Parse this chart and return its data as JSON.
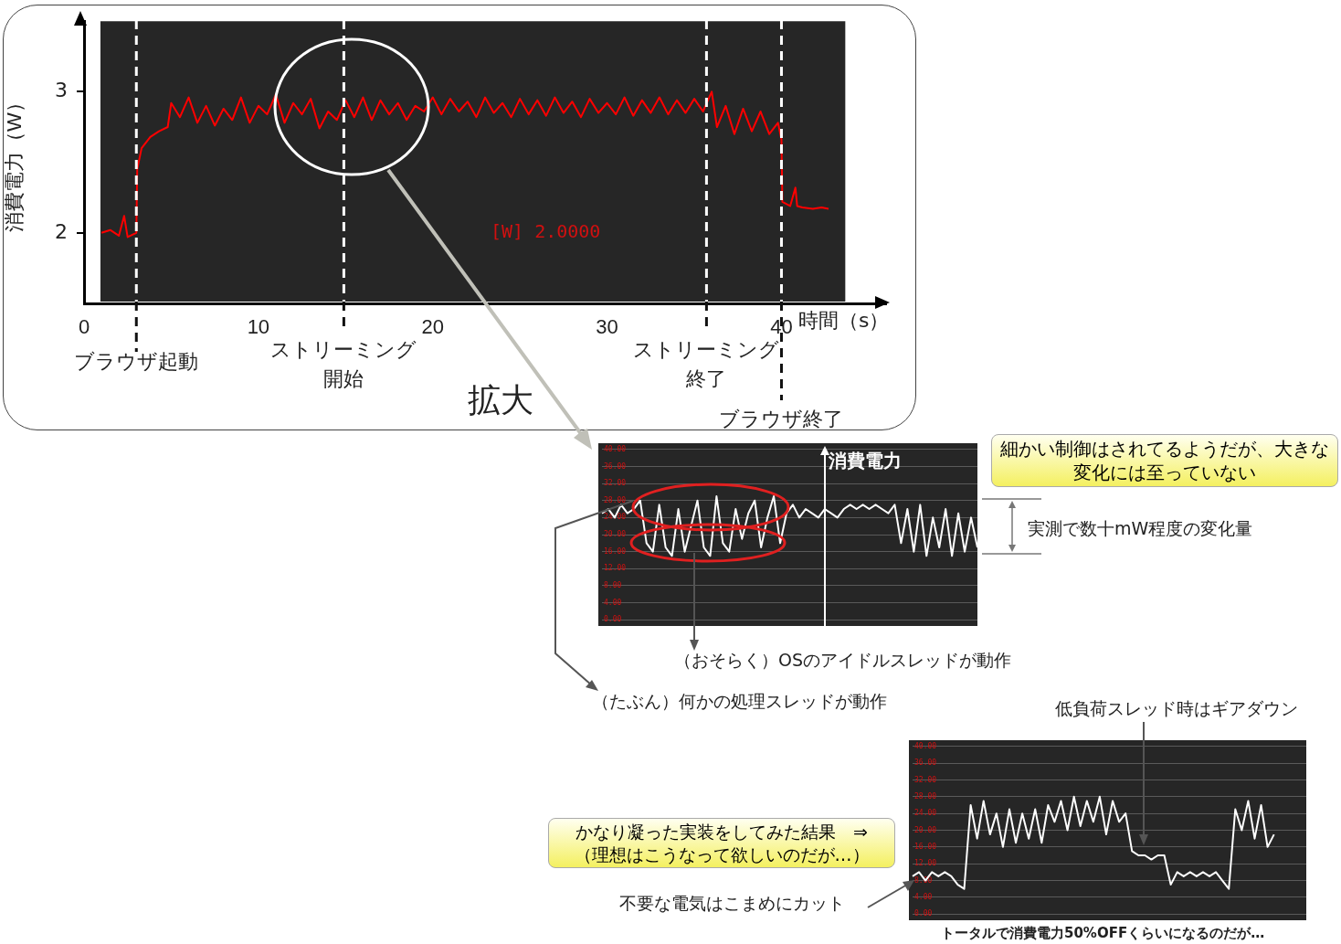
{
  "chart_data": [
    {
      "type": "line",
      "ylabel": "消費電力（W）",
      "xlabel": "時間（s）",
      "x": [
        1,
        1.5,
        2,
        2.3,
        2.5,
        3,
        3.05,
        3.3,
        3.8,
        4.3,
        4.8,
        5,
        5.5,
        6,
        6.5,
        7,
        7.5,
        8,
        8.5,
        9,
        9.5,
        10,
        10.5,
        11,
        11.5,
        12,
        12.5,
        13,
        13.5,
        14,
        14.5,
        15,
        15.5,
        16,
        16.5,
        17,
        17.5,
        18,
        18.5,
        19,
        19.5,
        20,
        20.5,
        21,
        21.5,
        22,
        22.5,
        23,
        23.5,
        24,
        24.5,
        25,
        25.5,
        26,
        26.5,
        27,
        27.5,
        28,
        28.5,
        29,
        29.5,
        30,
        30.5,
        31,
        31.5,
        32,
        32.5,
        33,
        33.5,
        34,
        34.5,
        35,
        35.5,
        36,
        36.3,
        36.8,
        37.3,
        37.8,
        38.3,
        38.8,
        39.3,
        39.8,
        40,
        40.05,
        40.5,
        40.8,
        40.9,
        41.2,
        41.8,
        42.3,
        42.7
      ],
      "series": [
        {
          "color": "#ff0000",
          "values": [
            2.0,
            2.02,
            1.98,
            2.12,
            1.97,
            2.0,
            2.45,
            2.6,
            2.68,
            2.72,
            2.75,
            2.92,
            2.82,
            2.96,
            2.78,
            2.9,
            2.76,
            2.88,
            2.8,
            2.96,
            2.78,
            2.9,
            2.84,
            2.98,
            2.78,
            2.92,
            2.84,
            2.95,
            2.74,
            2.86,
            2.8,
            2.94,
            2.82,
            2.96,
            2.8,
            2.94,
            2.84,
            2.92,
            2.8,
            2.9,
            2.86,
            2.96,
            2.84,
            2.95,
            2.86,
            2.93,
            2.82,
            2.96,
            2.85,
            2.92,
            2.82,
            2.95,
            2.84,
            2.94,
            2.83,
            2.96,
            2.85,
            2.93,
            2.82,
            2.95,
            2.85,
            2.92,
            2.84,
            2.96,
            2.83,
            2.94,
            2.85,
            2.96,
            2.84,
            2.94,
            2.85,
            2.95,
            2.86,
            3.0,
            2.75,
            2.9,
            2.7,
            2.88,
            2.72,
            2.86,
            2.7,
            2.78,
            2.66,
            2.22,
            2.19,
            2.32,
            2.19,
            2.18,
            2.17,
            2.18,
            2.17
          ]
        }
      ],
      "xlim": [
        0,
        46
      ],
      "xticks": [
        0,
        10,
        20,
        30,
        40
      ],
      "ylim": [
        1.5,
        3.5
      ],
      "yticks": [
        2,
        3
      ],
      "ref_lines": [
        {
          "axis": "x",
          "value": 3,
          "label": "ブラウザ起動",
          "line_style": "dashed"
        },
        {
          "axis": "x",
          "value": 14.9,
          "label": "ストリーミング開始",
          "line_style": "dashed"
        },
        {
          "axis": "x",
          "value": 35.7,
          "label": "ストリーミング終了",
          "line_style": "dashed"
        },
        {
          "axis": "x",
          "value": 40,
          "label": "ブラウザ終了",
          "line_style": "dashed"
        }
      ],
      "bands": [
        {
          "axis": "x",
          "from": 0.94,
          "to": 43.66,
          "color": "#262626"
        }
      ],
      "annotations": [
        "拡大",
        "[W] 2.0000"
      ],
      "grid": false,
      "legend": false
    },
    {
      "type": "line",
      "categories": [
        null,
        null,
        null,
        null,
        null,
        null,
        null,
        null,
        null,
        null,
        null,
        null,
        null,
        null,
        null,
        null,
        null,
        null,
        null,
        null,
        null,
        null,
        null,
        null,
        null,
        null,
        null,
        null,
        null,
        null,
        null,
        null,
        null,
        null,
        null,
        null,
        null,
        null,
        null,
        null,
        null,
        null,
        null,
        null,
        null,
        null,
        null,
        null,
        null,
        null,
        null,
        null,
        null,
        null,
        null,
        null,
        null,
        null,
        null,
        null
      ],
      "series": [
        {
          "color": "#ffffff",
          "values": [
            25,
            26,
            24,
            27,
            25,
            26,
            28,
            18,
            16,
            27,
            17,
            15,
            26,
            16,
            22,
            28,
            17,
            15,
            29,
            18,
            16,
            26,
            19,
            25,
            28,
            17,
            24,
            29,
            18,
            25,
            27,
            24,
            26,
            25,
            24,
            26,
            25,
            24,
            26,
            27,
            26,
            27,
            26,
            27,
            26,
            25,
            27,
            18,
            26,
            16,
            27,
            15,
            24,
            17,
            26,
            15,
            25,
            16,
            24,
            17
          ]
        }
      ],
      "ylim": [
        0,
        40
      ],
      "yticks": [
        {
          "value": 0,
          "label": "0.00"
        },
        {
          "value": 4,
          "label": "4.00"
        },
        {
          "value": 8,
          "label": "8.00"
        },
        {
          "value": 12,
          "label": "12.00"
        },
        {
          "value": 16,
          "label": "16.00"
        },
        {
          "value": 20,
          "label": "20.00"
        },
        {
          "value": 24,
          "label": "24.00"
        },
        {
          "value": 28,
          "label": "28.00"
        },
        {
          "value": 32,
          "label": "32.00"
        },
        {
          "value": 36,
          "label": "36.00"
        },
        {
          "value": 40,
          "label": "40.00"
        }
      ],
      "tick_labels": "y",
      "grid": "y",
      "legend": false,
      "annotations": [
        "消費電力",
        "細かい制御はされてるようだが、大きな変化には至っていない",
        "実測で数十mW程度の変化量",
        "（おそらく）OSのアイドルスレッドが動作",
        "（たぶん）何かの処理スレッドが動作"
      ]
    },
    {
      "type": "line",
      "categories": [
        null,
        null,
        null,
        null,
        null,
        null,
        null,
        null,
        null,
        null,
        null,
        null,
        null,
        null,
        null,
        null,
        null,
        null,
        null,
        null,
        null,
        null,
        null,
        null,
        null,
        null,
        null,
        null,
        null,
        null,
        null,
        null,
        null,
        null,
        null,
        null,
        null,
        null,
        null,
        null,
        null,
        null,
        null,
        null,
        null,
        null,
        null,
        null,
        null,
        null,
        null,
        null,
        null,
        null,
        null,
        null,
        null,
        null,
        null,
        null,
        null,
        null
      ],
      "series": [
        {
          "color": "#ffffff",
          "values": [
            9,
            10,
            8,
            10,
            9,
            10,
            9,
            7,
            6,
            26,
            18,
            27,
            19,
            24,
            16,
            25,
            17,
            24,
            18,
            25,
            17,
            26,
            22,
            27,
            20,
            28,
            21,
            27,
            22,
            28,
            19,
            27,
            22,
            24,
            15,
            14,
            14,
            13,
            14,
            14,
            7,
            10,
            9,
            10,
            9,
            10,
            9,
            10,
            8,
            6,
            25,
            20,
            27,
            18,
            26,
            16,
            19,
            null,
            null,
            null,
            null,
            null
          ]
        }
      ],
      "ylim": [
        0,
        40
      ],
      "yticks": [
        {
          "value": 0,
          "label": "0.00"
        },
        {
          "value": 4,
          "label": "4.00"
        },
        {
          "value": 8,
          "label": "8.00"
        },
        {
          "value": 12,
          "label": "12.00"
        },
        {
          "value": 16,
          "label": "16.00"
        },
        {
          "value": 20,
          "label": "20.00"
        },
        {
          "value": 24,
          "label": "24.00"
        },
        {
          "value": 28,
          "label": "28.00"
        },
        {
          "value": 32,
          "label": "32.00"
        },
        {
          "value": 36,
          "label": "36.00"
        },
        {
          "value": 40,
          "label": "40.00"
        }
      ],
      "tick_labels": "y",
      "grid": "y",
      "legend": false,
      "annotations": [
        "低負荷スレッド時はギアダウン",
        "かなり凝った実装をしてみた結果　⇒\n（理想はこうなって欲しいのだが…）",
        "不要な電気はこまめにカット",
        "トータルで消費電力50%OFFくらいになるのだが…"
      ]
    }
  ]
}
